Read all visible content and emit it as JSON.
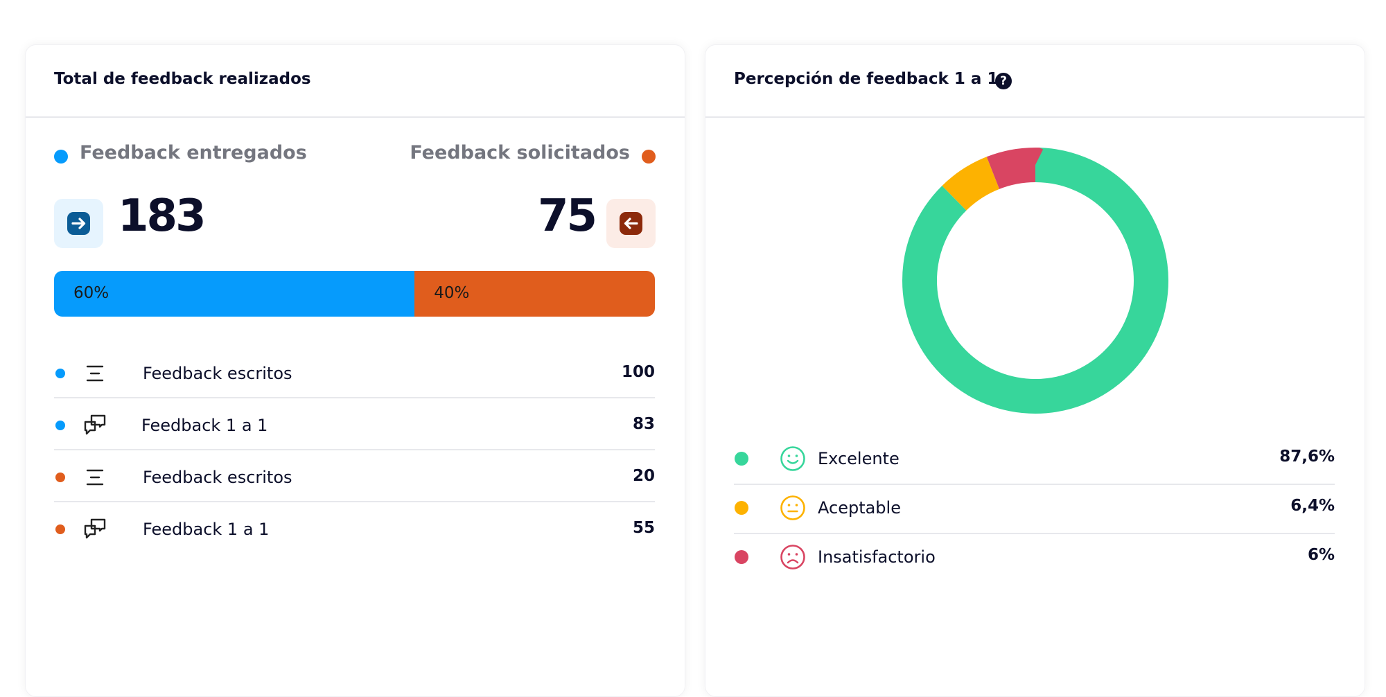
{
  "summary": {
    "title": "Total de feedback realizados",
    "given_label": "Feedback entregados",
    "requested_label": "Feedback solicitados",
    "given_count": 183,
    "requested_count": 75,
    "split": {
      "values": [
        60,
        40
      ],
      "value_labels": [
        "60%",
        "40%"
      ],
      "colors": [
        "#069bfc",
        "#e05d1d"
      ]
    },
    "rows": [
      {
        "label": "Feedback escritos",
        "value": 100
      },
      {
        "label": "Feedback 1 a 1",
        "value": 83
      },
      {
        "label": "Feedback escritos",
        "value": 20
      },
      {
        "label": "Feedback 1 a 1",
        "value": 55
      }
    ]
  },
  "perception": {
    "title": "Percepción de feedback 1 a 1",
    "help": "?"
  },
  "chart_data": {
    "type": "donut",
    "categories": [
      "Excelente",
      "Aceptable",
      "Insatisfactorio"
    ],
    "values": [
      87.6,
      6.4,
      6
    ],
    "value_labels": [
      "87,6%",
      "6,4%",
      "6%"
    ],
    "colors": [
      "#37d69b",
      "#fdb201",
      "#d94562"
    ]
  }
}
